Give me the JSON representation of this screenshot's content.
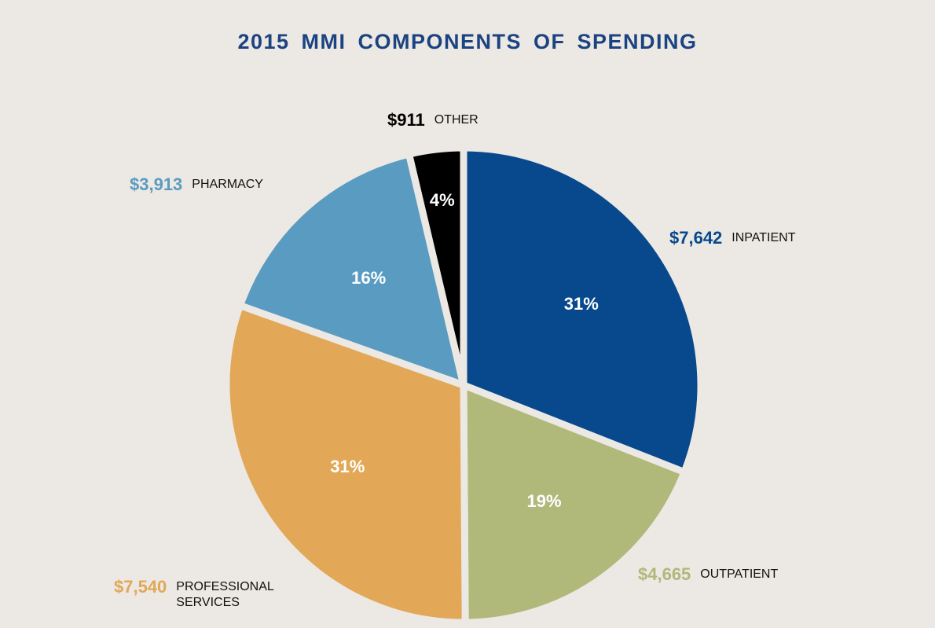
{
  "chart_data": {
    "type": "pie",
    "title": "2015 MMI COMPONENTS OF SPENDING",
    "categories": [
      "INPATIENT",
      "OUTPATIENT",
      "PROFESSIONAL SERVICES",
      "PHARMACY",
      "OTHER"
    ],
    "values": [
      7642,
      4665,
      7540,
      3913,
      911
    ],
    "value_labels": [
      "$7,642",
      "$4,665",
      "$7,540",
      "$3,913",
      "$911"
    ],
    "percents": [
      31,
      19,
      31,
      16,
      4
    ],
    "percent_labels": [
      "31%",
      "19%",
      "31%",
      "16%",
      "4%"
    ],
    "colors": [
      "#07498c",
      "#b0b87a",
      "#e2a757",
      "#5a9cc1",
      "#000000"
    ]
  }
}
